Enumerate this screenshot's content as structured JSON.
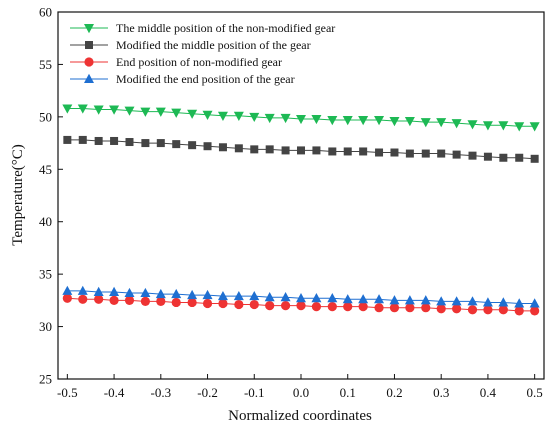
{
  "chart_data": {
    "type": "line",
    "title": "",
    "xlabel": "Normalized coordinates",
    "ylabel": "Temperature(°C)",
    "xlim": [
      -0.52,
      0.52
    ],
    "ylim": [
      25,
      60
    ],
    "x_ticks": [
      -0.5,
      -0.4,
      -0.3,
      -0.2,
      -0.1,
      0.0,
      0.1,
      0.2,
      0.3,
      0.4,
      0.5
    ],
    "x_tick_labels": [
      "-0.5",
      "-0.4",
      "-0.3",
      "-0.2",
      "-0.1",
      "0.0",
      "0.1",
      "0.2",
      "0.3",
      "0.4",
      "0.5"
    ],
    "y_ticks": [
      25,
      30,
      35,
      40,
      45,
      50,
      55,
      60
    ],
    "y_tick_labels": [
      "25",
      "30",
      "35",
      "40",
      "45",
      "50",
      "55",
      "60"
    ],
    "grid": false,
    "legend_position": "top-left",
    "x": [
      -0.5,
      -0.467,
      -0.433,
      -0.4,
      -0.367,
      -0.333,
      -0.3,
      -0.267,
      -0.233,
      -0.2,
      -0.167,
      -0.133,
      -0.1,
      -0.067,
      -0.033,
      0.0,
      0.033,
      0.067,
      0.1,
      0.133,
      0.167,
      0.2,
      0.233,
      0.267,
      0.3,
      0.333,
      0.367,
      0.4,
      0.433,
      0.467,
      0.5
    ],
    "series": [
      {
        "name": "The middle position of the non-modified gear",
        "color": "#1db954",
        "marker": "triangle-down",
        "values": [
          50.8,
          50.8,
          50.7,
          50.7,
          50.6,
          50.5,
          50.5,
          50.4,
          50.3,
          50.2,
          50.1,
          50.1,
          50.0,
          49.9,
          49.9,
          49.8,
          49.8,
          49.7,
          49.7,
          49.7,
          49.7,
          49.6,
          49.6,
          49.5,
          49.5,
          49.4,
          49.3,
          49.2,
          49.2,
          49.1,
          49.1
        ]
      },
      {
        "name": " Modified the middle position of the gear",
        "color": "#444444",
        "marker": "square",
        "values": [
          47.8,
          47.8,
          47.7,
          47.7,
          47.6,
          47.5,
          47.5,
          47.4,
          47.3,
          47.2,
          47.1,
          47.0,
          46.9,
          46.9,
          46.8,
          46.8,
          46.8,
          46.7,
          46.7,
          46.7,
          46.6,
          46.6,
          46.5,
          46.5,
          46.5,
          46.4,
          46.3,
          46.2,
          46.1,
          46.1,
          46.0
        ]
      },
      {
        "name": "End position of non-modified gear",
        "color": "#ee3333",
        "marker": "circle",
        "values": [
          32.7,
          32.6,
          32.6,
          32.5,
          32.5,
          32.4,
          32.4,
          32.3,
          32.3,
          32.2,
          32.2,
          32.1,
          32.1,
          32.0,
          32.0,
          32.0,
          31.9,
          31.9,
          31.9,
          31.9,
          31.8,
          31.8,
          31.8,
          31.8,
          31.7,
          31.7,
          31.6,
          31.6,
          31.6,
          31.5,
          31.5
        ]
      },
      {
        "name": "Modified the end position of the gear",
        "color": "#1f6fd1",
        "marker": "triangle-up",
        "values": [
          33.4,
          33.4,
          33.3,
          33.3,
          33.2,
          33.2,
          33.1,
          33.1,
          33.0,
          33.0,
          32.9,
          32.9,
          32.9,
          32.8,
          32.8,
          32.7,
          32.7,
          32.7,
          32.6,
          32.6,
          32.6,
          32.5,
          32.5,
          32.5,
          32.4,
          32.4,
          32.4,
          32.3,
          32.3,
          32.2,
          32.2
        ]
      }
    ]
  }
}
